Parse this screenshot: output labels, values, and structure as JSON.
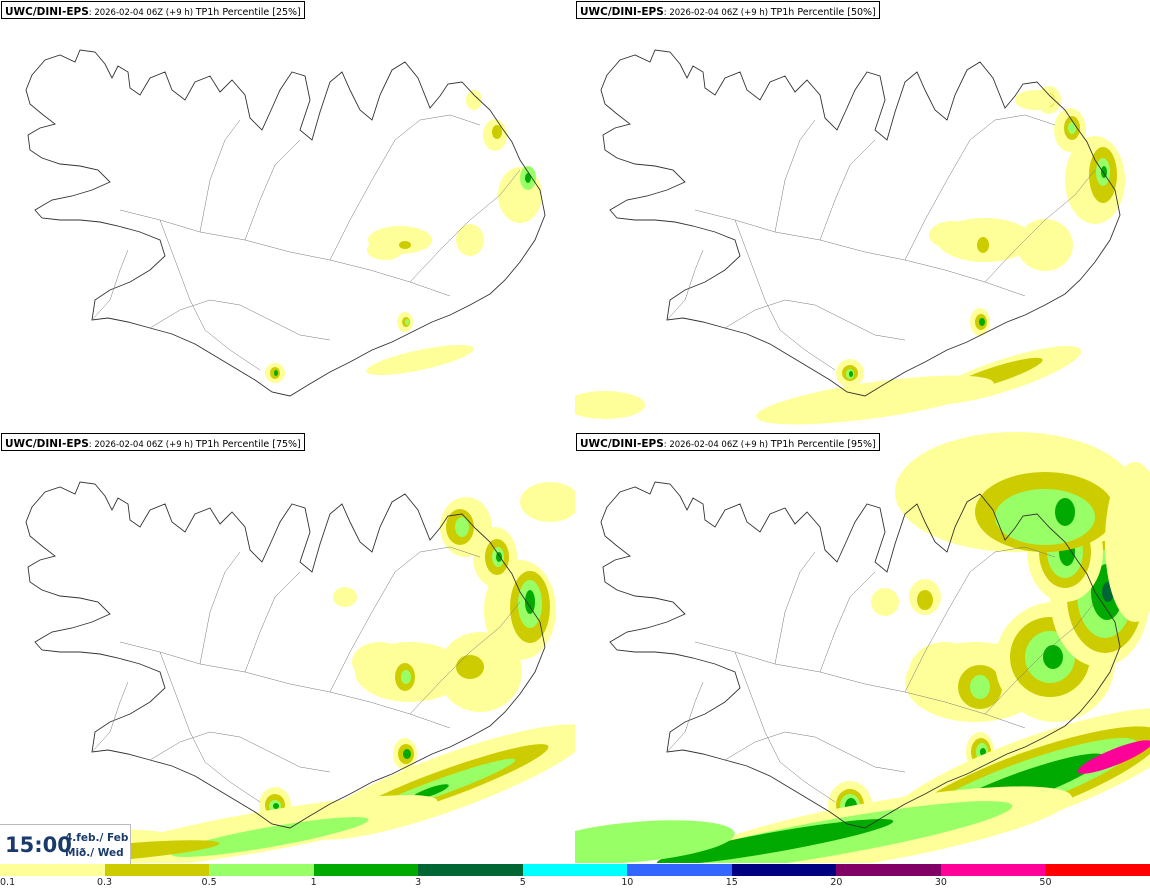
{
  "panels": [
    {
      "source": "UWC/DINI-EPS",
      "meta": ": 2026-02-04 06Z (+9 h) ",
      "param": "TP1h Percentile [25%]",
      "level": 0
    },
    {
      "source": "UWC/DINI-EPS",
      "meta": ": 2026-02-04 06Z (+9 h) ",
      "param": "TP1h Percentile [50%]",
      "level": 1
    },
    {
      "source": "UWC/DINI-EPS",
      "meta": ": 2026-02-04 06Z (+9 h) ",
      "param": "TP1h Percentile [75%]",
      "level": 2
    },
    {
      "source": "UWC/DINI-EPS",
      "meta": ": 2026-02-04 06Z (+9 h) ",
      "param": "TP1h Percentile [95%]",
      "level": 3
    }
  ],
  "valid_time": {
    "time": "15:00",
    "date": "4.feb./ Feb",
    "day": "Mið./ Wed"
  },
  "legend": {
    "colors": [
      "#ffff99",
      "#cccc00",
      "#99ff66",
      "#00aa00",
      "#006633",
      "#00ffff",
      "#3366ff",
      "#000080",
      "#800066",
      "#ff0099",
      "#ff0000"
    ],
    "ticks": [
      "0.1",
      "0.3",
      "0.5",
      "1",
      "3",
      "5",
      "10",
      "15",
      "20",
      "30",
      "50"
    ]
  }
}
